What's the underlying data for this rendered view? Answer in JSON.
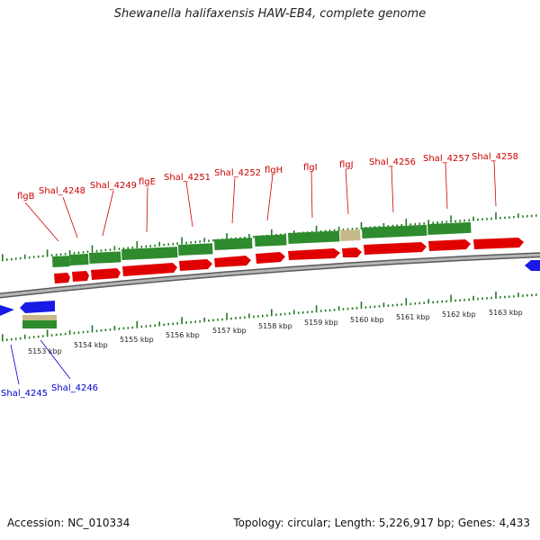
{
  "title": "Shewanella halifaxensis HAW-EB4, complete genome",
  "footer": {
    "accession": "Accession: NC_010334",
    "summary": "Topology: circular; Length: 5,226,917 bp; Genes: 4,433"
  },
  "colors": {
    "forward_cds": "#e00000",
    "cds_track": "#2e8b2e",
    "rna_track": "#c8b98a",
    "reverse_cds": "#1a1ae6",
    "backbone": "#888888",
    "tick": "#1f7a1f",
    "label_red": "#cc0000",
    "label_blue": "#0000cc"
  },
  "kbp_labels": [
    "5153 kbp",
    "5154 kbp",
    "5155 kbp",
    "5156 kbp",
    "5157 kbp",
    "5158 kbp",
    "5159 kbp",
    "5160 kbp",
    "5161 kbp",
    "5162 kbp",
    "5163 kbp"
  ],
  "forward_gene_labels": [
    "flgB",
    "Shal_4248",
    "Shal_4249",
    "flgE",
    "Shal_4251",
    "Shal_4252",
    "flgH",
    "flgI",
    "flgJ",
    "Shal_4256",
    "Shal_4257",
    "Shal_4258"
  ],
  "reverse_gene_labels": [
    "Shal_4245",
    "Shal_4246"
  ]
}
